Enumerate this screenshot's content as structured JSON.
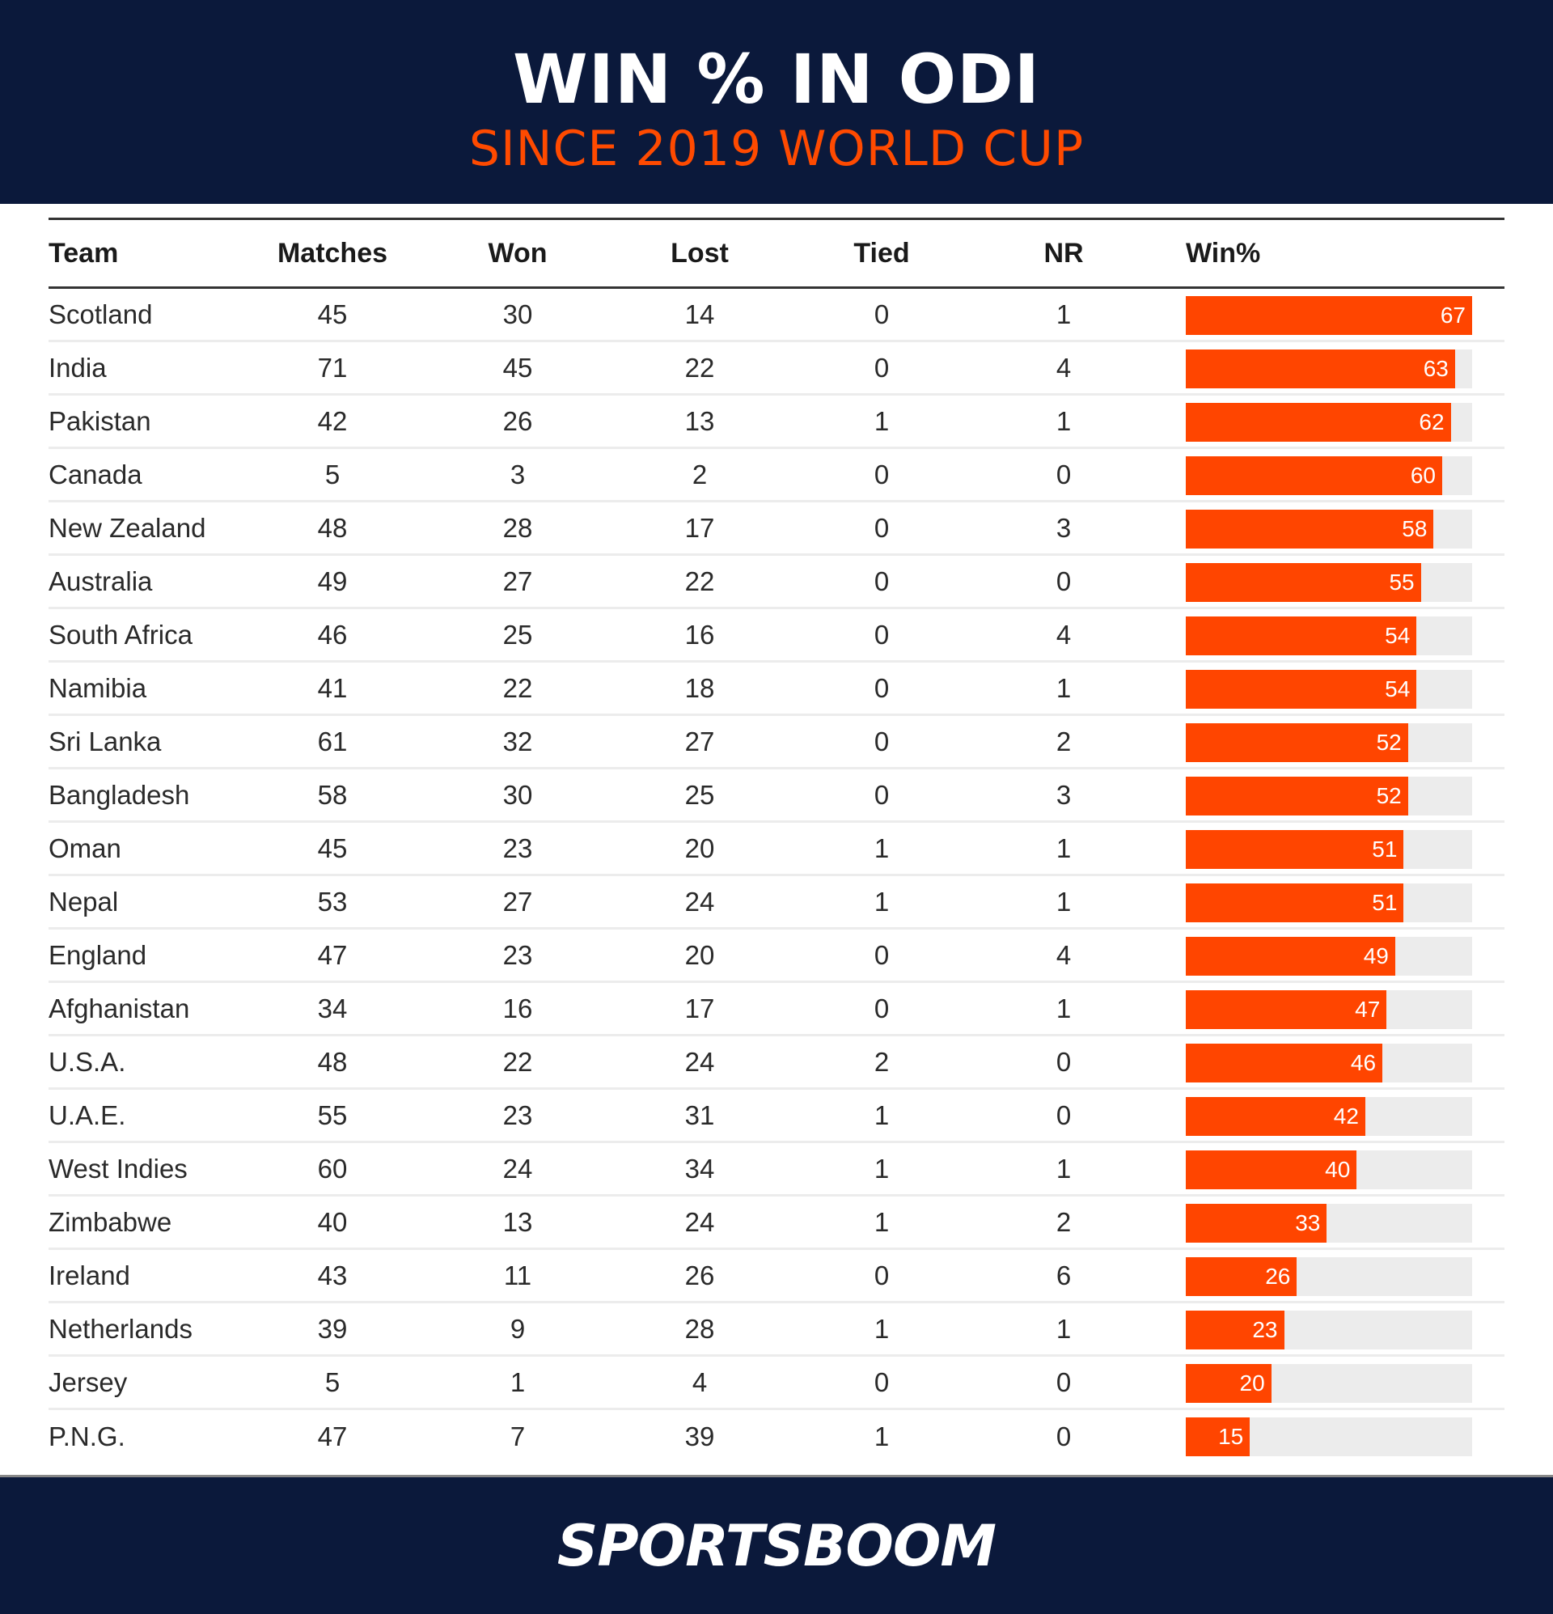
{
  "header": {
    "title": "WIN % IN ODI",
    "subtitle": "SINCE 2019 WORLD CUP"
  },
  "table": {
    "columns": [
      "Team",
      "Matches",
      "Won",
      "Lost",
      "Tied",
      "NR",
      "Win%"
    ],
    "rows": [
      {
        "team": "Scotland",
        "matches": "45",
        "won": "30",
        "lost": "14",
        "tied": "0",
        "nr": "1",
        "win": "67"
      },
      {
        "team": "India",
        "matches": "71",
        "won": "45",
        "lost": "22",
        "tied": "0",
        "nr": "4",
        "win": "63"
      },
      {
        "team": "Pakistan",
        "matches": "42",
        "won": "26",
        "lost": "13",
        "tied": "1",
        "nr": "1",
        "win": "62"
      },
      {
        "team": "Canada",
        "matches": "5",
        "won": "3",
        "lost": "2",
        "tied": "0",
        "nr": "0",
        "win": "60"
      },
      {
        "team": "New Zealand",
        "matches": "48",
        "won": "28",
        "lost": "17",
        "tied": "0",
        "nr": "3",
        "win": "58"
      },
      {
        "team": "Australia",
        "matches": "49",
        "won": "27",
        "lost": "22",
        "tied": "0",
        "nr": "0",
        "win": "55"
      },
      {
        "team": "South Africa",
        "matches": "46",
        "won": "25",
        "lost": "16",
        "tied": "0",
        "nr": "4",
        "win": "54"
      },
      {
        "team": "Namibia",
        "matches": "41",
        "won": "22",
        "lost": "18",
        "tied": "0",
        "nr": "1",
        "win": "54"
      },
      {
        "team": "Sri Lanka",
        "matches": "61",
        "won": "32",
        "lost": "27",
        "tied": "0",
        "nr": "2",
        "win": "52"
      },
      {
        "team": "Bangladesh",
        "matches": "58",
        "won": "30",
        "lost": "25",
        "tied": "0",
        "nr": "3",
        "win": "52"
      },
      {
        "team": "Oman",
        "matches": "45",
        "won": "23",
        "lost": "20",
        "tied": "1",
        "nr": "1",
        "win": "51"
      },
      {
        "team": "Nepal",
        "matches": "53",
        "won": "27",
        "lost": "24",
        "tied": "1",
        "nr": "1",
        "win": "51"
      },
      {
        "team": "England",
        "matches": "47",
        "won": "23",
        "lost": "20",
        "tied": "0",
        "nr": "4",
        "win": "49"
      },
      {
        "team": "Afghanistan",
        "matches": "34",
        "won": "16",
        "lost": "17",
        "tied": "0",
        "nr": "1",
        "win": "47"
      },
      {
        "team": "U.S.A.",
        "matches": "48",
        "won": "22",
        "lost": "24",
        "tied": "2",
        "nr": "0",
        "win": "46"
      },
      {
        "team": "U.A.E.",
        "matches": "55",
        "won": "23",
        "lost": "31",
        "tied": "1",
        "nr": "0",
        "win": "42"
      },
      {
        "team": "West Indies",
        "matches": "60",
        "won": "24",
        "lost": "34",
        "tied": "1",
        "nr": "1",
        "win": "40"
      },
      {
        "team": "Zimbabwe",
        "matches": "40",
        "won": "13",
        "lost": "24",
        "tied": "1",
        "nr": "2",
        "win": "33"
      },
      {
        "team": "Ireland",
        "matches": "43",
        "won": "11",
        "lost": "26",
        "tied": "0",
        "nr": "6",
        "win": "26"
      },
      {
        "team": "Netherlands",
        "matches": "39",
        "won": "9",
        "lost": "28",
        "tied": "1",
        "nr": "1",
        "win": "23"
      },
      {
        "team": "Jersey",
        "matches": "5",
        "won": "1",
        "lost": "4",
        "tied": "0",
        "nr": "0",
        "win": "20"
      },
      {
        "team": "P.N.G.",
        "matches": "47",
        "won": "7",
        "lost": "39",
        "tied": "1",
        "nr": "0",
        "win": "15"
      }
    ]
  },
  "footer": {
    "logo": "SPORTSBOOM"
  },
  "colors": {
    "navy": "#0b193b",
    "accent": "#ff4500",
    "track": "#ececec"
  },
  "chart_data": {
    "type": "table",
    "title": "WIN % IN ODI",
    "subtitle": "SINCE 2019 WORLD CUP",
    "columns": [
      "Team",
      "Matches",
      "Won",
      "Lost",
      "Tied",
      "NR",
      "Win%"
    ],
    "categories": [
      "Scotland",
      "India",
      "Pakistan",
      "Canada",
      "New Zealand",
      "Australia",
      "South Africa",
      "Namibia",
      "Sri Lanka",
      "Bangladesh",
      "Oman",
      "Nepal",
      "England",
      "Afghanistan",
      "U.S.A.",
      "U.A.E.",
      "West Indies",
      "Zimbabwe",
      "Ireland",
      "Netherlands",
      "Jersey",
      "P.N.G."
    ],
    "series": [
      {
        "name": "Matches",
        "values": [
          45,
          71,
          42,
          5,
          48,
          49,
          46,
          41,
          61,
          58,
          45,
          53,
          47,
          34,
          48,
          55,
          60,
          40,
          43,
          39,
          5,
          47
        ]
      },
      {
        "name": "Won",
        "values": [
          30,
          45,
          26,
          3,
          28,
          27,
          25,
          22,
          32,
          30,
          23,
          27,
          23,
          16,
          22,
          23,
          24,
          13,
          11,
          9,
          1,
          7
        ]
      },
      {
        "name": "Lost",
        "values": [
          14,
          22,
          13,
          2,
          17,
          22,
          16,
          18,
          27,
          25,
          20,
          24,
          20,
          17,
          24,
          31,
          34,
          24,
          26,
          28,
          4,
          39
        ]
      },
      {
        "name": "Tied",
        "values": [
          0,
          0,
          1,
          0,
          0,
          0,
          0,
          0,
          0,
          0,
          1,
          1,
          0,
          0,
          2,
          1,
          1,
          1,
          0,
          1,
          0,
          1
        ]
      },
      {
        "name": "NR",
        "values": [
          1,
          4,
          1,
          0,
          3,
          0,
          4,
          1,
          2,
          3,
          1,
          1,
          4,
          1,
          0,
          0,
          1,
          2,
          6,
          1,
          0,
          0
        ]
      },
      {
        "name": "Win%",
        "values": [
          67,
          63,
          62,
          60,
          58,
          55,
          54,
          54,
          52,
          52,
          51,
          51,
          49,
          47,
          46,
          42,
          40,
          33,
          26,
          23,
          20,
          15
        ]
      }
    ],
    "bar_column": "Win%",
    "bar_scale_max": 67
  }
}
